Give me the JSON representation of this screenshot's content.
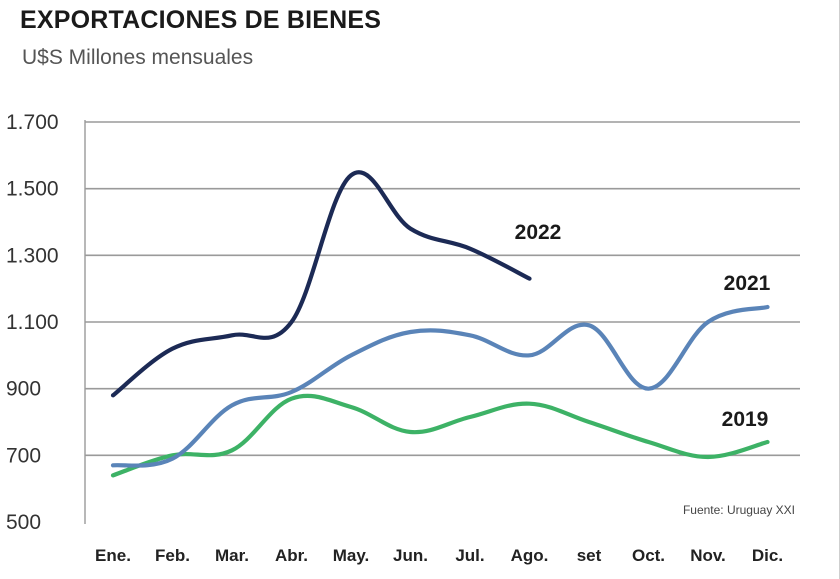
{
  "header": {
    "title": "EXPORTACIONES DE BIENES",
    "subtitle": "U$S Millones  mensuales"
  },
  "source": "Fuente: Uruguay XXI",
  "colors": {
    "2022": "#1c2a55",
    "2021": "#5a84b8",
    "2019": "#3db266",
    "grid": "#9a9a9a"
  },
  "chart_data": {
    "type": "line",
    "title": "EXPORTACIONES DE BIENES",
    "subtitle": "U$S Millones  mensuales",
    "categories": [
      "Ene.",
      "Feb.",
      "Mar.",
      "Abr.",
      "May.",
      "Jun.",
      "Jul.",
      "Ago.",
      "set",
      "Oct.",
      "Nov.",
      "Dic."
    ],
    "ylim": [
      500,
      1700
    ],
    "yticks": [
      500,
      700,
      900,
      1100,
      1300,
      1500,
      1700
    ],
    "ytick_labels": [
      "500",
      "700",
      "900",
      "1.100",
      "1.300",
      "1.500",
      "1.700"
    ],
    "grid": true,
    "series": [
      {
        "name": "2022",
        "values": [
          880,
          1020,
          1060,
          1100,
          1540,
          1380,
          1320,
          1230,
          null,
          null,
          null,
          null
        ]
      },
      {
        "name": "2021",
        "values": [
          670,
          690,
          850,
          890,
          1000,
          1070,
          1060,
          1000,
          1090,
          900,
          1100,
          1145
        ]
      },
      {
        "name": "2019",
        "values": [
          640,
          700,
          715,
          870,
          845,
          770,
          815,
          855,
          800,
          740,
          695,
          740
        ]
      }
    ]
  }
}
